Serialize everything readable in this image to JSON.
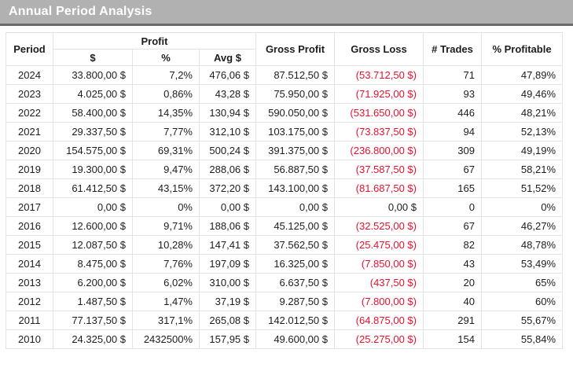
{
  "title": "Annual Period Analysis",
  "colors": {
    "titlebar_bg": "#b1b1b1",
    "titlebar_edge": "#6a6a6a",
    "title_text": "#ffffff",
    "grid_line": "#e3e3e3",
    "body_text": "#1d1d1d",
    "loss_red": "#e8112d"
  },
  "table": {
    "headers": {
      "period": "Period",
      "profit_group": "Profit",
      "profit_dollar": "$",
      "profit_pct": "%",
      "profit_avg": "Avg $",
      "gross_profit": "Gross Profit",
      "gross_loss": "Gross Loss",
      "trades": "# Trades",
      "pct_profitable": "% Profitable"
    },
    "rows": [
      {
        "period": "2024",
        "profit_dollar": "33.800,00 $",
        "profit_pct": "7,2%",
        "profit_avg": "476,06 $",
        "gross_profit": "87.512,50 $",
        "gross_loss": "(53.712,50 $)",
        "loss_negative": true,
        "trades": "71",
        "pct_profitable": "47,89%"
      },
      {
        "period": "2023",
        "profit_dollar": "4.025,00 $",
        "profit_pct": "0,86%",
        "profit_avg": "43,28 $",
        "gross_profit": "75.950,00 $",
        "gross_loss": "(71.925,00 $)",
        "loss_negative": true,
        "trades": "93",
        "pct_profitable": "49,46%"
      },
      {
        "period": "2022",
        "profit_dollar": "58.400,00 $",
        "profit_pct": "14,35%",
        "profit_avg": "130,94 $",
        "gross_profit": "590.050,00 $",
        "gross_loss": "(531.650,00 $)",
        "loss_negative": true,
        "trades": "446",
        "pct_profitable": "48,21%"
      },
      {
        "period": "2021",
        "profit_dollar": "29.337,50 $",
        "profit_pct": "7,77%",
        "profit_avg": "312,10 $",
        "gross_profit": "103.175,00 $",
        "gross_loss": "(73.837,50 $)",
        "loss_negative": true,
        "trades": "94",
        "pct_profitable": "52,13%"
      },
      {
        "period": "2020",
        "profit_dollar": "154.575,00 $",
        "profit_pct": "69,31%",
        "profit_avg": "500,24 $",
        "gross_profit": "391.375,00 $",
        "gross_loss": "(236.800,00 $)",
        "loss_negative": true,
        "trades": "309",
        "pct_profitable": "49,19%"
      },
      {
        "period": "2019",
        "profit_dollar": "19.300,00 $",
        "profit_pct": "9,47%",
        "profit_avg": "288,06 $",
        "gross_profit": "56.887,50 $",
        "gross_loss": "(37.587,50 $)",
        "loss_negative": true,
        "trades": "67",
        "pct_profitable": "58,21%"
      },
      {
        "period": "2018",
        "profit_dollar": "61.412,50 $",
        "profit_pct": "43,15%",
        "profit_avg": "372,20 $",
        "gross_profit": "143.100,00 $",
        "gross_loss": "(81.687,50 $)",
        "loss_negative": true,
        "trades": "165",
        "pct_profitable": "51,52%"
      },
      {
        "period": "2017",
        "profit_dollar": "0,00 $",
        "profit_pct": "0%",
        "profit_avg": "0,00 $",
        "gross_profit": "0,00 $",
        "gross_loss": "0,00 $",
        "loss_negative": false,
        "trades": "0",
        "pct_profitable": "0%"
      },
      {
        "period": "2016",
        "profit_dollar": "12.600,00 $",
        "profit_pct": "9,71%",
        "profit_avg": "188,06 $",
        "gross_profit": "45.125,00 $",
        "gross_loss": "(32.525,00 $)",
        "loss_negative": true,
        "trades": "67",
        "pct_profitable": "46,27%"
      },
      {
        "period": "2015",
        "profit_dollar": "12.087,50 $",
        "profit_pct": "10,28%",
        "profit_avg": "147,41 $",
        "gross_profit": "37.562,50 $",
        "gross_loss": "(25.475,00 $)",
        "loss_negative": true,
        "trades": "82",
        "pct_profitable": "48,78%"
      },
      {
        "period": "2014",
        "profit_dollar": "8.475,00 $",
        "profit_pct": "7,76%",
        "profit_avg": "197,09 $",
        "gross_profit": "16.325,00 $",
        "gross_loss": "(7.850,00 $)",
        "loss_negative": true,
        "trades": "43",
        "pct_profitable": "53,49%"
      },
      {
        "period": "2013",
        "profit_dollar": "6.200,00 $",
        "profit_pct": "6,02%",
        "profit_avg": "310,00 $",
        "gross_profit": "6.637,50 $",
        "gross_loss": "(437,50 $)",
        "loss_negative": true,
        "trades": "20",
        "pct_profitable": "65%"
      },
      {
        "period": "2012",
        "profit_dollar": "1.487,50 $",
        "profit_pct": "1,47%",
        "profit_avg": "37,19 $",
        "gross_profit": "9.287,50 $",
        "gross_loss": "(7.800,00 $)",
        "loss_negative": true,
        "trades": "40",
        "pct_profitable": "60%"
      },
      {
        "period": "2011",
        "profit_dollar": "77.137,50 $",
        "profit_pct": "317,1%",
        "profit_avg": "265,08 $",
        "gross_profit": "142.012,50 $",
        "gross_loss": "(64.875,00 $)",
        "loss_negative": true,
        "trades": "291",
        "pct_profitable": "55,67%"
      },
      {
        "period": "2010",
        "profit_dollar": "24.325,00 $",
        "profit_pct": "2432500%",
        "profit_avg": "157,95 $",
        "gross_profit": "49.600,00 $",
        "gross_loss": "(25.275,00 $)",
        "loss_negative": true,
        "trades": "154",
        "pct_profitable": "55,84%"
      }
    ]
  }
}
